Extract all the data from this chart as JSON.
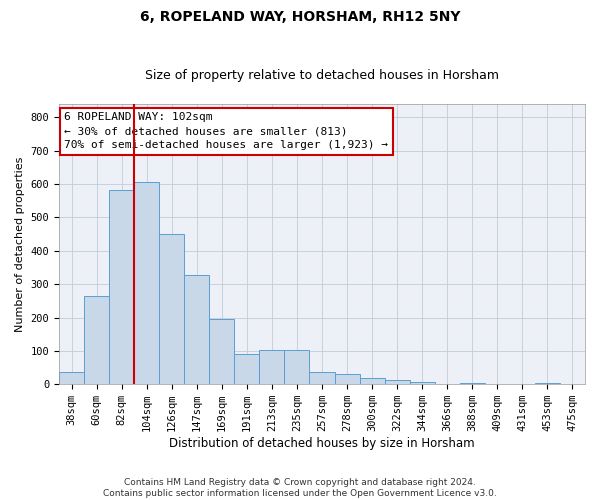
{
  "title": "6, ROPELAND WAY, HORSHAM, RH12 5NY",
  "subtitle": "Size of property relative to detached houses in Horsham",
  "xlabel": "Distribution of detached houses by size in Horsham",
  "ylabel": "Number of detached properties",
  "categories": [
    "38sqm",
    "60sqm",
    "82sqm",
    "104sqm",
    "126sqm",
    "147sqm",
    "169sqm",
    "191sqm",
    "213sqm",
    "235sqm",
    "257sqm",
    "278sqm",
    "300sqm",
    "322sqm",
    "344sqm",
    "366sqm",
    "388sqm",
    "409sqm",
    "431sqm",
    "453sqm",
    "475sqm"
  ],
  "values": [
    38,
    265,
    582,
    605,
    450,
    328,
    195,
    90,
    103,
    103,
    38,
    30,
    18,
    14,
    8,
    0,
    5,
    0,
    0,
    5,
    0
  ],
  "bar_color": "#c8d8e8",
  "bar_edge_color": "#5a9fd4",
  "vline_color": "#cc0000",
  "annotation_line1": "6 ROPELAND WAY: 102sqm",
  "annotation_line2": "← 30% of detached houses are smaller (813)",
  "annotation_line3": "70% of semi-detached houses are larger (1,923) →",
  "annotation_box_edge_color": "#cc0000",
  "footnote": "Contains HM Land Registry data © Crown copyright and database right 2024.\nContains public sector information licensed under the Open Government Licence v3.0.",
  "ylim": [
    0,
    840
  ],
  "yticks": [
    0,
    100,
    200,
    300,
    400,
    500,
    600,
    700,
    800
  ],
  "title_fontsize": 10,
  "subtitle_fontsize": 9,
  "xlabel_fontsize": 8.5,
  "ylabel_fontsize": 8,
  "tick_fontsize": 7.5,
  "footnote_fontsize": 6.5,
  "annotation_fontsize": 8,
  "bg_color": "#edf1f7",
  "grid_color": "#c0ccd8",
  "fig_bg": "#ffffff"
}
